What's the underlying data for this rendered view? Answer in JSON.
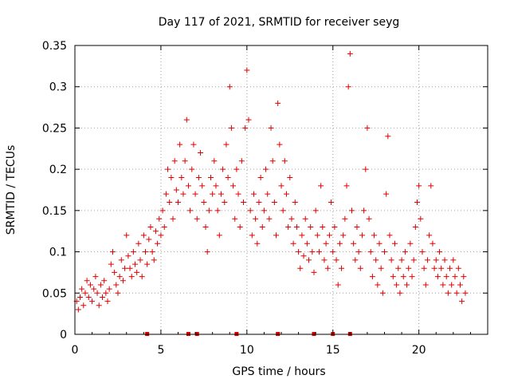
{
  "chart_data": {
    "type": "scatter",
    "title": "Day 117 of 2021, SRMTID for receiver seyg",
    "xlabel": "GPS time / hours",
    "ylabel": "SRMTID / TECUs",
    "xlim": [
      0,
      24
    ],
    "ylim": [
      0,
      0.35
    ],
    "x_ticks": [
      "0",
      "5",
      "10",
      "15",
      "20"
    ],
    "x_tick_values": [
      0,
      5,
      10,
      15,
      20
    ],
    "y_ticks": [
      "0",
      "0.05",
      "0.1",
      "0.15",
      "0.2",
      "0.25",
      "0.3",
      "0.35"
    ],
    "y_tick_values": [
      0,
      0.05,
      0.1,
      0.15,
      0.2,
      0.25,
      0.3,
      0.35
    ],
    "grid": true,
    "marker": "+",
    "color": "#e00000",
    "baseline_markers_x": [
      4.2,
      6.6,
      7.1,
      9.4,
      11.8,
      13.9,
      15.0,
      16.0
    ],
    "series": [
      {
        "name": "SRMTID",
        "points": [
          [
            0.1,
            0.04
          ],
          [
            0.2,
            0.03
          ],
          [
            0.3,
            0.045
          ],
          [
            0.4,
            0.055
          ],
          [
            0.5,
            0.035
          ],
          [
            0.6,
            0.05
          ],
          [
            0.7,
            0.065
          ],
          [
            0.8,
            0.045
          ],
          [
            0.9,
            0.06
          ],
          [
            1.0,
            0.04
          ],
          [
            1.1,
            0.055
          ],
          [
            1.2,
            0.07
          ],
          [
            1.3,
            0.05
          ],
          [
            1.4,
            0.035
          ],
          [
            1.5,
            0.06
          ],
          [
            1.6,
            0.045
          ],
          [
            1.7,
            0.065
          ],
          [
            1.8,
            0.05
          ],
          [
            1.9,
            0.04
          ],
          [
            2.0,
            0.055
          ],
          [
            2.1,
            0.085
          ],
          [
            2.2,
            0.1
          ],
          [
            2.3,
            0.075
          ],
          [
            2.4,
            0.06
          ],
          [
            2.5,
            0.05
          ],
          [
            2.6,
            0.07
          ],
          [
            2.7,
            0.09
          ],
          [
            2.8,
            0.065
          ],
          [
            2.9,
            0.08
          ],
          [
            3.0,
            0.12
          ],
          [
            3.1,
            0.095
          ],
          [
            3.2,
            0.08
          ],
          [
            3.3,
            0.07
          ],
          [
            3.4,
            0.1
          ],
          [
            3.5,
            0.085
          ],
          [
            3.6,
            0.075
          ],
          [
            3.7,
            0.11
          ],
          [
            3.8,
            0.09
          ],
          [
            3.9,
            0.07
          ],
          [
            4.0,
            0.12
          ],
          [
            4.1,
            0.1
          ],
          [
            4.2,
            0.085
          ],
          [
            4.3,
            0.115
          ],
          [
            4.4,
            0.13
          ],
          [
            4.5,
            0.1
          ],
          [
            4.6,
            0.09
          ],
          [
            4.7,
            0.125
          ],
          [
            4.8,
            0.11
          ],
          [
            4.9,
            0.14
          ],
          [
            5.0,
            0.12
          ],
          [
            5.1,
            0.15
          ],
          [
            5.2,
            0.13
          ],
          [
            5.3,
            0.17
          ],
          [
            5.4,
            0.2
          ],
          [
            5.5,
            0.16
          ],
          [
            5.6,
            0.19
          ],
          [
            5.7,
            0.14
          ],
          [
            5.8,
            0.21
          ],
          [
            5.9,
            0.175
          ],
          [
            6.0,
            0.16
          ],
          [
            6.1,
            0.23
          ],
          [
            6.2,
            0.19
          ],
          [
            6.3,
            0.17
          ],
          [
            6.4,
            0.21
          ],
          [
            6.5,
            0.26
          ],
          [
            6.6,
            0.18
          ],
          [
            6.7,
            0.15
          ],
          [
            6.8,
            0.2
          ],
          [
            6.9,
            0.23
          ],
          [
            7.0,
            0.17
          ],
          [
            7.1,
            0.14
          ],
          [
            7.2,
            0.19
          ],
          [
            7.3,
            0.22
          ],
          [
            7.4,
            0.18
          ],
          [
            7.5,
            0.16
          ],
          [
            7.6,
            0.13
          ],
          [
            7.7,
            0.1
          ],
          [
            7.8,
            0.15
          ],
          [
            7.9,
            0.19
          ],
          [
            8.0,
            0.17
          ],
          [
            8.1,
            0.21
          ],
          [
            8.2,
            0.18
          ],
          [
            8.3,
            0.15
          ],
          [
            8.4,
            0.12
          ],
          [
            8.5,
            0.17
          ],
          [
            8.6,
            0.2
          ],
          [
            8.7,
            0.16
          ],
          [
            8.8,
            0.23
          ],
          [
            8.9,
            0.19
          ],
          [
            9.0,
            0.3
          ],
          [
            9.1,
            0.25
          ],
          [
            9.2,
            0.18
          ],
          [
            9.3,
            0.14
          ],
          [
            9.4,
            0.2
          ],
          [
            9.5,
            0.17
          ],
          [
            9.6,
            0.13
          ],
          [
            9.7,
            0.21
          ],
          [
            9.8,
            0.16
          ],
          [
            9.9,
            0.25
          ],
          [
            10.0,
            0.32
          ],
          [
            10.1,
            0.26
          ],
          [
            10.2,
            0.15
          ],
          [
            10.3,
            0.12
          ],
          [
            10.4,
            0.17
          ],
          [
            10.5,
            0.14
          ],
          [
            10.6,
            0.11
          ],
          [
            10.7,
            0.16
          ],
          [
            10.8,
            0.19
          ],
          [
            10.9,
            0.13
          ],
          [
            11.0,
            0.15
          ],
          [
            11.1,
            0.2
          ],
          [
            11.2,
            0.17
          ],
          [
            11.3,
            0.14
          ],
          [
            11.4,
            0.25
          ],
          [
            11.5,
            0.21
          ],
          [
            11.6,
            0.16
          ],
          [
            11.7,
            0.12
          ],
          [
            11.8,
            0.28
          ],
          [
            11.9,
            0.23
          ],
          [
            12.0,
            0.18
          ],
          [
            12.1,
            0.15
          ],
          [
            12.2,
            0.21
          ],
          [
            12.3,
            0.17
          ],
          [
            12.4,
            0.13
          ],
          [
            12.5,
            0.19
          ],
          [
            12.6,
            0.14
          ],
          [
            12.7,
            0.11
          ],
          [
            12.8,
            0.16
          ],
          [
            12.9,
            0.13
          ],
          [
            13.0,
            0.1
          ],
          [
            13.1,
            0.08
          ],
          [
            13.2,
            0.12
          ],
          [
            13.3,
            0.095
          ],
          [
            13.4,
            0.14
          ],
          [
            13.5,
            0.11
          ],
          [
            13.6,
            0.09
          ],
          [
            13.7,
            0.13
          ],
          [
            13.8,
            0.1
          ],
          [
            13.9,
            0.075
          ],
          [
            14.0,
            0.15
          ],
          [
            14.1,
            0.12
          ],
          [
            14.2,
            0.1
          ],
          [
            14.3,
            0.18
          ],
          [
            14.4,
            0.13
          ],
          [
            14.5,
            0.09
          ],
          [
            14.6,
            0.11
          ],
          [
            14.7,
            0.08
          ],
          [
            14.8,
            0.12
          ],
          [
            14.9,
            0.16
          ],
          [
            15.0,
            0.1
          ],
          [
            15.1,
            0.13
          ],
          [
            15.2,
            0.09
          ],
          [
            15.3,
            0.06
          ],
          [
            15.4,
            0.11
          ],
          [
            15.5,
            0.08
          ],
          [
            15.6,
            0.12
          ],
          [
            15.7,
            0.14
          ],
          [
            15.8,
            0.18
          ],
          [
            15.9,
            0.3
          ],
          [
            16.0,
            0.34
          ],
          [
            16.1,
            0.15
          ],
          [
            16.2,
            0.11
          ],
          [
            16.3,
            0.09
          ],
          [
            16.4,
            0.13
          ],
          [
            16.5,
            0.1
          ],
          [
            16.6,
            0.08
          ],
          [
            16.7,
            0.12
          ],
          [
            16.8,
            0.15
          ],
          [
            16.9,
            0.2
          ],
          [
            17.0,
            0.25
          ],
          [
            17.1,
            0.14
          ],
          [
            17.2,
            0.1
          ],
          [
            17.3,
            0.07
          ],
          [
            17.4,
            0.12
          ],
          [
            17.5,
            0.09
          ],
          [
            17.6,
            0.06
          ],
          [
            17.7,
            0.11
          ],
          [
            17.8,
            0.08
          ],
          [
            17.9,
            0.05
          ],
          [
            18.0,
            0.1
          ],
          [
            18.1,
            0.17
          ],
          [
            18.2,
            0.24
          ],
          [
            18.3,
            0.12
          ],
          [
            18.4,
            0.09
          ],
          [
            18.5,
            0.07
          ],
          [
            18.6,
            0.11
          ],
          [
            18.7,
            0.06
          ],
          [
            18.8,
            0.08
          ],
          [
            18.9,
            0.05
          ],
          [
            19.0,
            0.09
          ],
          [
            19.1,
            0.07
          ],
          [
            19.2,
            0.1
          ],
          [
            19.3,
            0.06
          ],
          [
            19.4,
            0.08
          ],
          [
            19.5,
            0.11
          ],
          [
            19.6,
            0.07
          ],
          [
            19.7,
            0.09
          ],
          [
            19.8,
            0.13
          ],
          [
            19.9,
            0.16
          ],
          [
            20.0,
            0.18
          ],
          [
            20.1,
            0.14
          ],
          [
            20.2,
            0.1
          ],
          [
            20.3,
            0.08
          ],
          [
            20.4,
            0.06
          ],
          [
            20.5,
            0.09
          ],
          [
            20.6,
            0.12
          ],
          [
            20.7,
            0.18
          ],
          [
            20.8,
            0.11
          ],
          [
            20.9,
            0.08
          ],
          [
            21.0,
            0.09
          ],
          [
            21.1,
            0.07
          ],
          [
            21.2,
            0.1
          ],
          [
            21.3,
            0.08
          ],
          [
            21.4,
            0.06
          ],
          [
            21.5,
            0.09
          ],
          [
            21.6,
            0.07
          ],
          [
            21.7,
            0.05
          ],
          [
            21.8,
            0.08
          ],
          [
            21.9,
            0.06
          ],
          [
            22.0,
            0.09
          ],
          [
            22.1,
            0.07
          ],
          [
            22.2,
            0.05
          ],
          [
            22.3,
            0.08
          ],
          [
            22.4,
            0.06
          ],
          [
            22.5,
            0.04
          ],
          [
            22.6,
            0.07
          ],
          [
            22.7,
            0.05
          ]
        ]
      }
    ]
  }
}
